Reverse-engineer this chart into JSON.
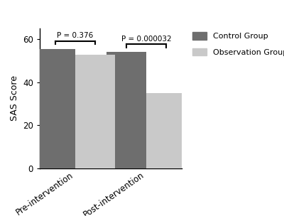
{
  "categories": [
    "Pre-intervention",
    "Post-intervention"
  ],
  "control_values": [
    55.2,
    54.0
  ],
  "observation_values": [
    52.8,
    35.0
  ],
  "control_color": "#6e6e6e",
  "observation_color": "#c9c9c9",
  "ylabel": "SAS Score",
  "ylim": [
    0,
    65
  ],
  "yticks": [
    0,
    20,
    40,
    60
  ],
  "bar_width": 0.28,
  "group_centers": [
    0.25,
    0.75
  ],
  "legend_labels": [
    "Control Group",
    "Observation Group"
  ],
  "p_values": [
    "P = 0.376",
    "P = 0.000032"
  ],
  "background_color": "#ffffff"
}
